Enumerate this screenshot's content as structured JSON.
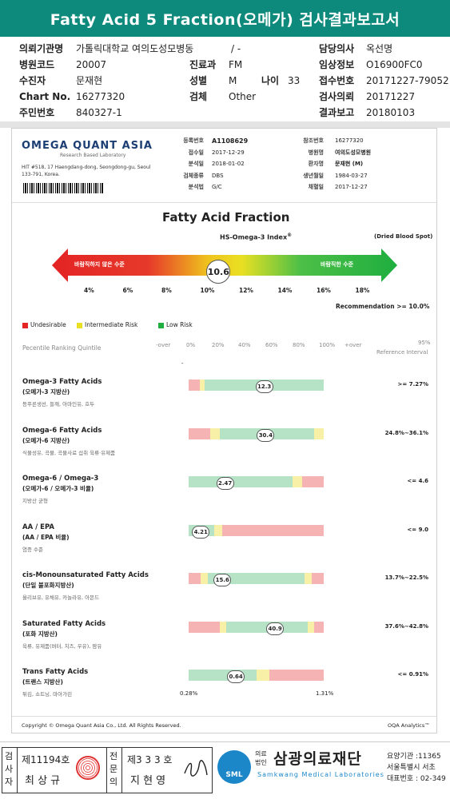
{
  "title": "Fatty Acid 5 Fraction(오메가) 검사결과보고서",
  "header": {
    "rows": [
      [
        {
          "k": "의뢰기관명",
          "v": "가톨릭대학교 여의도성모병동"
        },
        {
          "k": "",
          "v": "/ -"
        },
        {
          "k": "담당의사",
          "v": "옥선명"
        }
      ],
      [
        {
          "k": "병원코드",
          "v": "20007"
        },
        {
          "k": "진료과",
          "v": "FM"
        },
        {
          "k": "임상정보",
          "v": "O16900FC0"
        }
      ],
      [
        {
          "k": "수진자",
          "v": "문재현"
        },
        {
          "k": "성별",
          "v": "M"
        },
        {
          "k": "접수번호",
          "v": "20171227-79052"
        }
      ],
      [
        {
          "k": "Chart No.",
          "v": "16277320"
        },
        {
          "k": "검체",
          "v": "Other"
        },
        {
          "k": "검사의뢰",
          "v": "20171227"
        }
      ],
      [
        {
          "k": "주민번호",
          "v": "840327-1"
        },
        {
          "k": "",
          "v": ""
        },
        {
          "k": "결과보고",
          "v": "20180103"
        }
      ]
    ],
    "age_label": "나이",
    "age_value": "33"
  },
  "lab": {
    "name": "OMEGA QUANT ASIA",
    "tagline": "Research Based Laboratory",
    "address": "HIT #518, 17 Haengdang-dong, Seongdong-gu, Seoul 133-791, Korea."
  },
  "info_left": [
    {
      "k": "등록번호",
      "v": "A1108629"
    },
    {
      "k": "접수일",
      "v": "2017-12-29"
    },
    {
      "k": "분석일",
      "v": "2018-01-02"
    },
    {
      "k": "검체종류",
      "v": "DBS"
    },
    {
      "k": "분석법",
      "v": "G/C"
    }
  ],
  "info_right": [
    {
      "k": "참조번호",
      "v": "16277320"
    },
    {
      "k": "병원명",
      "v": "여의도성모병원"
    },
    {
      "k": "환자명",
      "v": "문재현 (M)"
    },
    {
      "k": "생년월일",
      "v": "1984-03-27"
    },
    {
      "k": "채혈일",
      "v": "2017-12-27"
    }
  ],
  "section_title": "Fatty Acid Fraction",
  "index": {
    "label": "HS-Omega-3 Index",
    "sup": "®",
    "sample": "(Dried Blood Spot)",
    "value": "10.6",
    "value_num": 10.6,
    "left_text": "바람직하지 않은 수준",
    "right_text": "바람직한 수준",
    "scale": [
      "4%",
      "6%",
      "8%",
      "10%",
      "12%",
      "14%",
      "16%",
      "18%"
    ],
    "recommendation": "Recommendation >= 10.0%"
  },
  "legend": [
    {
      "color": "#e32424",
      "label": "Undesirable"
    },
    {
      "color": "#e9e022",
      "label": "Intermediate Risk"
    },
    {
      "color": "#1fae3f",
      "label": "Low Risk"
    }
  ],
  "percentile": {
    "label": "Pecentile Ranking Quintile",
    "ticks": [
      "-over",
      "0%",
      "20%",
      "40%",
      "60%",
      "80%",
      "100%",
      "+over"
    ],
    "ref_label": "95%",
    "ref_label2": "Reference Interval"
  },
  "colors": {
    "red": "#f5b3b3",
    "yellow": "#f7f0a6",
    "green": "#b6e3c6"
  },
  "items": [
    {
      "name": "Omega-3 Fatty Acids",
      "kor": "(오메가-3 지방산)",
      "src": "등푸른생선, 들깨, 아마인유, 호두",
      "value": "12.3",
      "pos": 56,
      "ref": ">= 7.27%",
      "segs": [
        [
          "red",
          8
        ],
        [
          "yellow",
          4
        ],
        [
          "green",
          88
        ]
      ]
    },
    {
      "name": "Omega-6 Fatty Acids",
      "kor": "(오메가-6 지방산)",
      "src": "식물성유, 곡물, 곡물사료 섭취 육류·유제품",
      "value": "30.4",
      "pos": 57,
      "ref": "24.8%~36.1%",
      "segs": [
        [
          "red",
          16
        ],
        [
          "yellow",
          7
        ],
        [
          "green",
          70
        ],
        [
          "yellow",
          7
        ]
      ]
    },
    {
      "name": "Omega-6 / Omega-3",
      "kor": "(오메가-6 / 오메가-3 비율)",
      "src": "지방산 균형",
      "value": "2.47",
      "pos": 27,
      "ref": "<= 4.6",
      "segs": [
        [
          "green",
          77
        ],
        [
          "yellow",
          7
        ],
        [
          "red",
          16
        ]
      ]
    },
    {
      "name": "AA / EPA",
      "kor": "(AA / EPA 비율)",
      "src": "염증 수준",
      "value": "4.21",
      "pos": 9,
      "ref": "<= 9.0",
      "segs": [
        [
          "green",
          19
        ],
        [
          "yellow",
          6
        ],
        [
          "red",
          75
        ]
      ]
    },
    {
      "name": "cis-Monounsaturated Fatty Acids",
      "kor": "(단일 불포화지방산)",
      "src": "올리브유, 유채유, 카놀라유, 아몬드",
      "value": "15.6",
      "pos": 25,
      "ref": "13.7%~22.5%",
      "segs": [
        [
          "red",
          9
        ],
        [
          "yellow",
          5
        ],
        [
          "green",
          72
        ],
        [
          "yellow",
          5
        ],
        [
          "red",
          9
        ]
      ]
    },
    {
      "name": "Saturated Fatty Acids",
      "kor": "(포화 지방산)",
      "src": "육류, 유제품(버터, 치즈, 우유), 팜유",
      "value": "40.9",
      "pos": 64,
      "ref": "37.6%~42.8%",
      "segs": [
        [
          "red",
          23
        ],
        [
          "yellow",
          5
        ],
        [
          "green",
          60
        ],
        [
          "yellow",
          5
        ],
        [
          "red",
          7
        ]
      ]
    },
    {
      "name": "Trans Fatty Acids",
      "kor": "(트랜스 지방산)",
      "src": "튀김, 쇼트닝, 마아가린",
      "value": "0.64",
      "pos": 35,
      "ref": "<= 0.91%",
      "segs": [
        [
          "green",
          50
        ],
        [
          "yellow",
          10
        ],
        [
          "red",
          40
        ]
      ]
    }
  ],
  "trans_scale": {
    "min": "0.28%",
    "max": "1.31%"
  },
  "copyright": "Copyright © Omega Quant Asia Co., Ltd.  All Rights Reserved.",
  "oqa": "OQA Analytics™",
  "footer": {
    "sign1_label": "검사자",
    "sign1_no": "제11194호",
    "sign1_name": "최 상 규",
    "sign2_label": "전문의",
    "sign2_no": "제3 3 3 호",
    "sign2_name": "지 현 영",
    "org_prefix1": "의료",
    "org_prefix2": "법인",
    "org_name": "삼광의료재단",
    "org_en": "Samkwang Medical Laboratories",
    "logo_text": "SML",
    "right1": "요양기관 :11365",
    "right2": "서울특별시 서초",
    "right3": "대표번호 : 02-349"
  }
}
